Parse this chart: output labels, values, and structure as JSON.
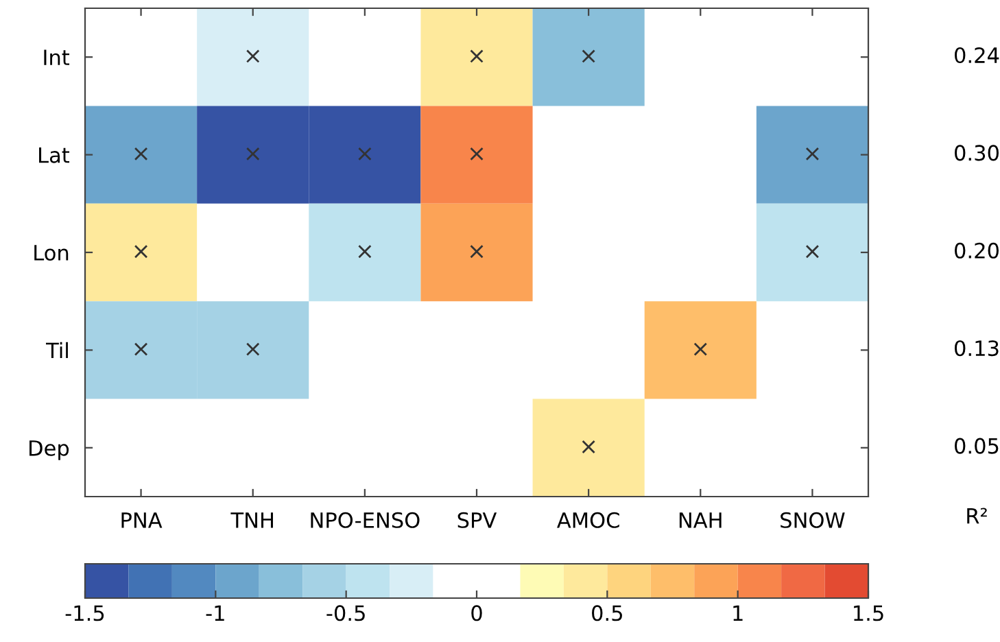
{
  "chart_data": {
    "type": "heatmap",
    "categories": [
      "PNA",
      "TNH",
      "NPO-ENSO",
      "SPV",
      "AMOC",
      "NAH",
      "SNOW"
    ],
    "y_categories": [
      "Int",
      "Lat",
      "Lon",
      "Til",
      "Dep"
    ],
    "y2_categories": [
      "0.24",
      "0.30",
      "0.20",
      "0.13",
      "0.05"
    ],
    "y2label": "R²",
    "cells": [
      [
        null,
        -0.25,
        null,
        0.42,
        -0.75,
        null,
        null
      ],
      [
        -0.92,
        -1.42,
        -1.42,
        1.08,
        null,
        null,
        -0.92
      ],
      [
        0.42,
        null,
        -0.42,
        0.92,
        null,
        null,
        -0.42
      ],
      [
        -0.58,
        -0.58,
        null,
        null,
        null,
        0.75,
        null
      ],
      [
        null,
        null,
        null,
        null,
        0.42,
        null,
        null
      ]
    ],
    "cell_labels": [
      [
        null,
        "×",
        null,
        "×",
        "×",
        null,
        null
      ],
      [
        "×",
        "×",
        "×",
        "×",
        null,
        null,
        "×"
      ],
      [
        "×",
        null,
        "×",
        "×",
        null,
        null,
        "×"
      ],
      [
        "×",
        "×",
        null,
        null,
        null,
        "×",
        null
      ],
      [
        null,
        null,
        null,
        null,
        "×",
        null,
        null
      ]
    ],
    "colors": [
      "#3653a4",
      "#4172b4",
      "#5289c0",
      "#6ca5cc",
      "#89bfda",
      "#a5d2e5",
      "#bee3ef",
      "#d8eef6",
      "#ffffff",
      "#ffffff",
      "#fefbb5",
      "#fee99c",
      "#fed47e",
      "#febe6a",
      "#fca357",
      "#f8854b",
      "#f06944",
      "#e34b32"
    ],
    "clim": [
      -1.5,
      1.5
    ],
    "cticks": [
      -1.5,
      -1,
      -0.5,
      0,
      0.5,
      1,
      1.5
    ]
  }
}
